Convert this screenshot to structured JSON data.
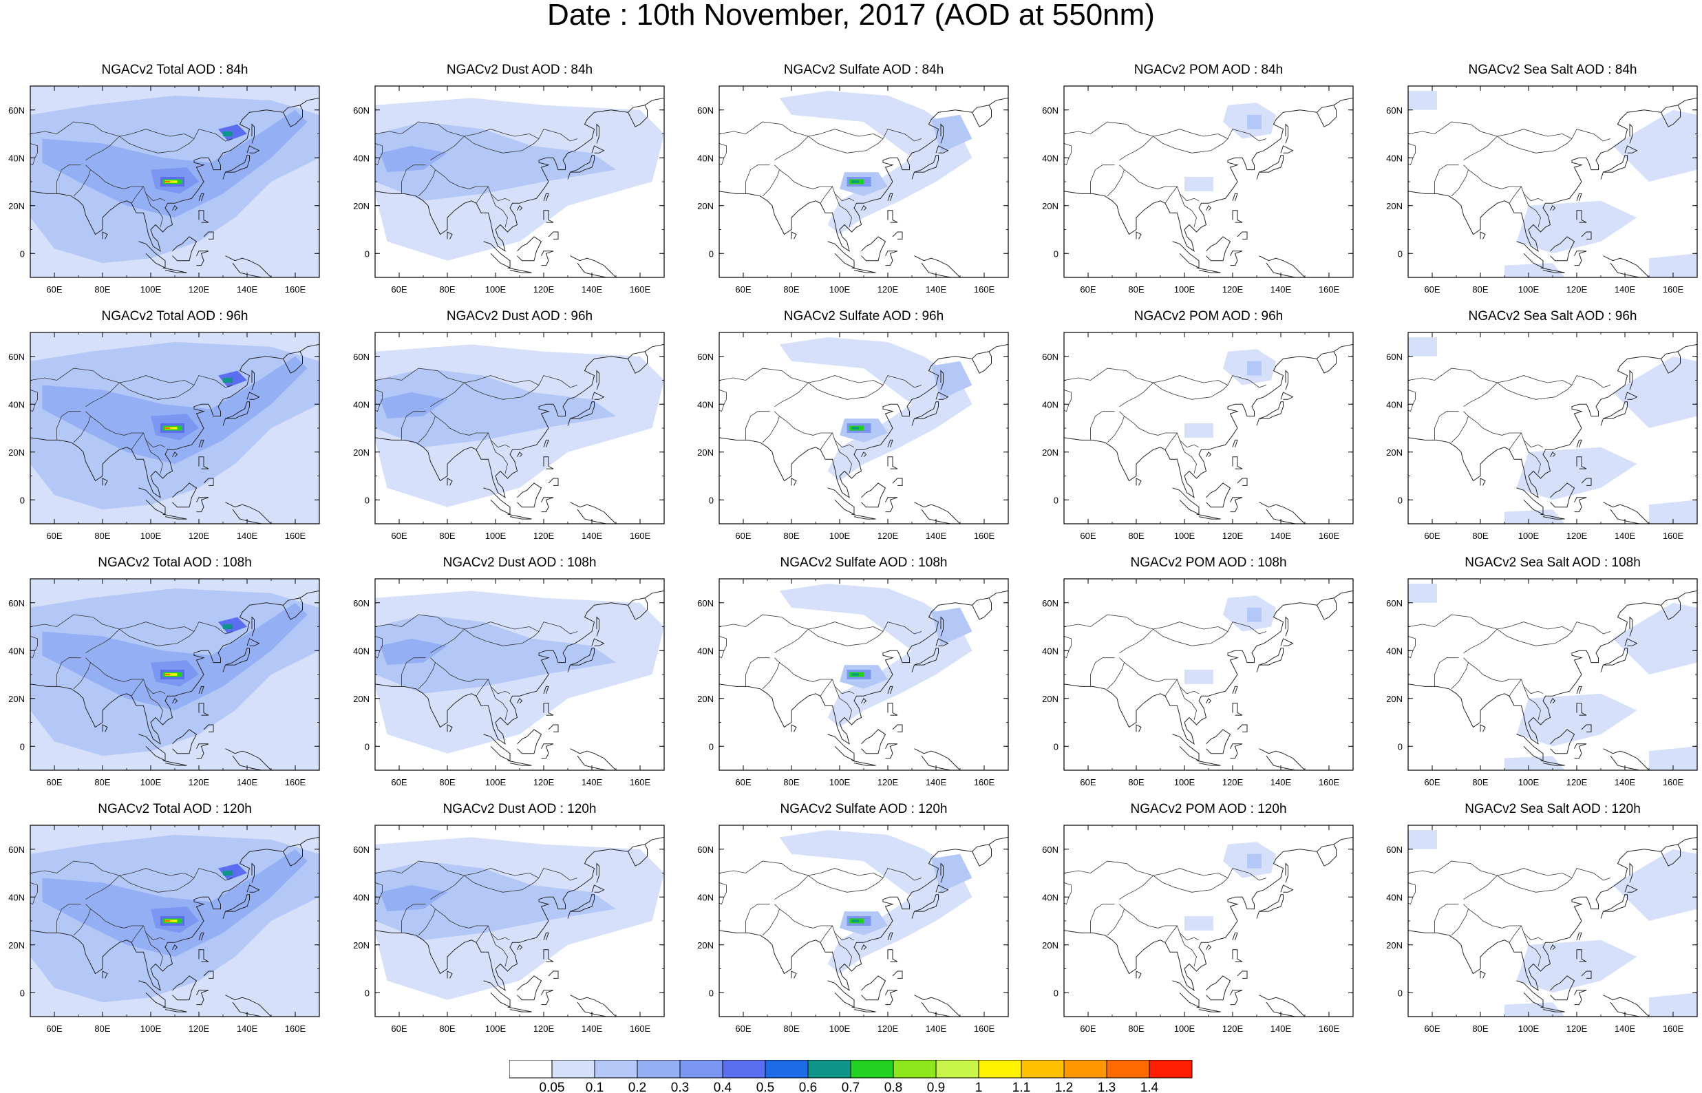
{
  "title": "Date : 10th November, 2017 (AOD at 550nm)",
  "panels": [
    {
      "title": "NGACv2 Total AOD : 84h",
      "species": "total",
      "lead": "84h"
    },
    {
      "title": "NGACv2 Dust AOD : 84h",
      "species": "dust",
      "lead": "84h"
    },
    {
      "title": "NGACv2 Sulfate AOD : 84h",
      "species": "sulfate",
      "lead": "84h"
    },
    {
      "title": "NGACv2 POM AOD : 84h",
      "species": "pom",
      "lead": "84h"
    },
    {
      "title": "NGACv2 Sea Salt AOD : 84h",
      "species": "seasalt",
      "lead": "84h"
    },
    {
      "title": "NGACv2 Total AOD : 96h",
      "species": "total",
      "lead": "96h"
    },
    {
      "title": "NGACv2 Dust AOD : 96h",
      "species": "dust",
      "lead": "96h"
    },
    {
      "title": "NGACv2 Sulfate AOD : 96h",
      "species": "sulfate",
      "lead": "96h"
    },
    {
      "title": "NGACv2 POM AOD : 96h",
      "species": "pom",
      "lead": "96h"
    },
    {
      "title": "NGACv2 Sea Salt AOD : 96h",
      "species": "seasalt",
      "lead": "96h"
    },
    {
      "title": "NGACv2 Total AOD : 108h",
      "species": "total",
      "lead": "108h"
    },
    {
      "title": "NGACv2 Dust AOD : 108h",
      "species": "dust",
      "lead": "108h"
    },
    {
      "title": "NGACv2 Sulfate AOD : 108h",
      "species": "sulfate",
      "lead": "108h"
    },
    {
      "title": "NGACv2 POM AOD : 108h",
      "species": "pom",
      "lead": "108h"
    },
    {
      "title": "NGACv2 Sea Salt AOD : 108h",
      "species": "seasalt",
      "lead": "108h"
    },
    {
      "title": "NGACv2 Total AOD : 120h",
      "species": "total",
      "lead": "120h"
    },
    {
      "title": "NGACv2 Dust AOD : 120h",
      "species": "dust",
      "lead": "120h"
    },
    {
      "title": "NGACv2 Sulfate AOD : 120h",
      "species": "sulfate",
      "lead": "120h"
    },
    {
      "title": "NGACv2 POM AOD : 120h",
      "species": "pom",
      "lead": "120h"
    },
    {
      "title": "NGACv2 Sea Salt  AOD : 120h",
      "species": "seasalt",
      "lead": "120h"
    }
  ],
  "map": {
    "lon_range": [
      50,
      170
    ],
    "lat_range": [
      -10,
      70
    ],
    "x_ticks": [
      60,
      80,
      100,
      120,
      140,
      160
    ],
    "x_tick_labels": [
      "60E",
      "80E",
      "100E",
      "120E",
      "140E",
      "160E"
    ],
    "y_ticks": [
      0,
      20,
      40,
      60
    ],
    "y_tick_labels": [
      "0",
      "20N",
      "40N",
      "60N"
    ]
  },
  "colorbar": {
    "levels": [
      "0.05",
      "0.1",
      "0.2",
      "0.3",
      "0.4",
      "0.5",
      "0.6",
      "0.7",
      "0.8",
      "0.9",
      "1",
      "1.1",
      "1.2",
      "1.3",
      "1.4"
    ],
    "colors": [
      "#ffffff",
      "#d6e0fa",
      "#b4c8f7",
      "#94aff4",
      "#7b97f1",
      "#5c6ef0",
      "#1e6be8",
      "#0f9488",
      "#22d022",
      "#8ee61c",
      "#c7f54a",
      "#fff200",
      "#ffc000",
      "#ff9800",
      "#ff6a00",
      "#ff1e00"
    ]
  }
}
